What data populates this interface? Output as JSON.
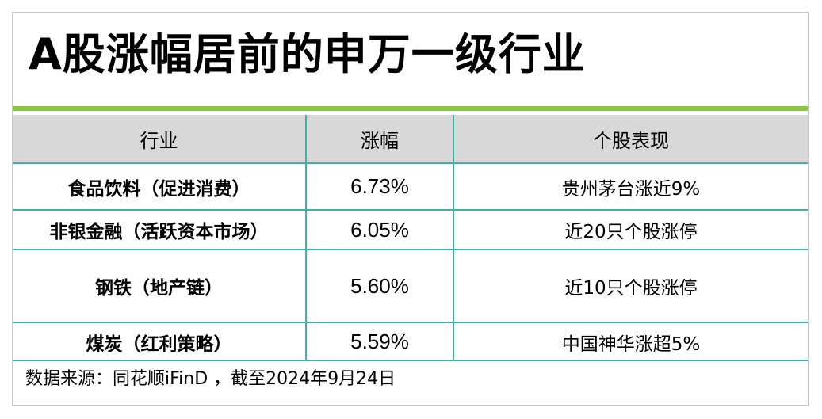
{
  "title": "A股涨幅居前的申万一级行业",
  "table": {
    "headers": [
      "行业",
      "涨幅",
      "个股表现"
    ],
    "rows": [
      {
        "industry": "食品饮料（促进消费）",
        "change": "6.73%",
        "performance": "贵州茅台涨近9%"
      },
      {
        "industry": "非银金融（活跃资本市场）",
        "change": "6.05%",
        "performance": "近20只个股涨停"
      },
      {
        "industry": "钢铁（地产链）",
        "change": "5.60%",
        "performance": "近10只个股涨停"
      },
      {
        "industry": "煤炭（红利策略）",
        "change": "5.59%",
        "performance": "中国神华涨超5%"
      }
    ]
  },
  "source": "数据来源：同花顺iFinD ，截至2024年9月24日",
  "colors": {
    "accent_green": "#8dc63f",
    "table_border_teal": "#3bb3ad",
    "header_gray": "#d8d8d8"
  }
}
